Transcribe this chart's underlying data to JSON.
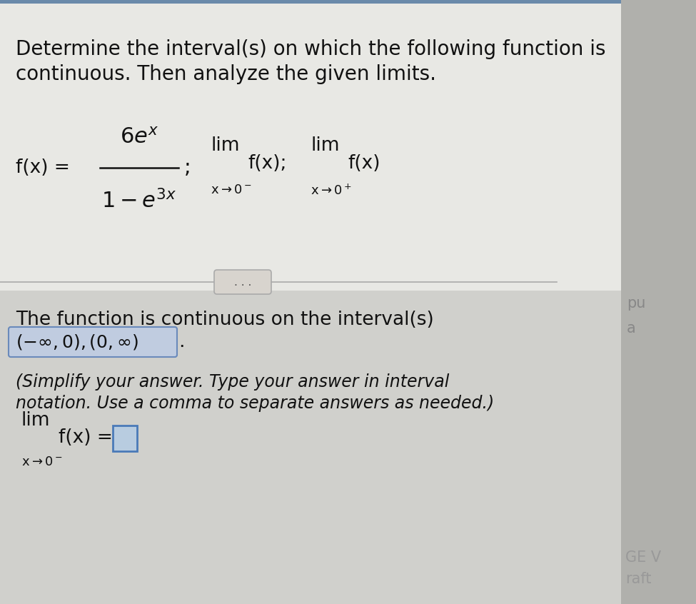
{
  "bg_top_color": "#5a7a9a",
  "bg_panel_color": "#c8c8c4",
  "white_panel_color": "#e8e8e4",
  "lower_panel_color": "#d0d0cc",
  "title_line1": "Determine the interval(s) on which the following function is",
  "title_line2": "continuous. Then analyze the given limits.",
  "answer_line1": "The function is continuous on the interval(s)",
  "answer_interval": "(− ∞,0),(0,∞)",
  "simplify_line1": "(Simplify your answer. Type your answer in interval",
  "simplify_line2": "notation. Use a comma to separate answers as needed.)",
  "text_color": "#111111",
  "blue_text_color": "#1a3a8a",
  "box_fill": "#c0cce0",
  "box_edge": "#6a8abb",
  "input_fill": "#b8cce0",
  "input_edge": "#4a7ab8",
  "sep_color": "#aaaaaa",
  "dots_fill": "#d8d4ce",
  "dots_edge": "#aaaaaa",
  "side_color": "#888888",
  "corner_color": "#999999"
}
